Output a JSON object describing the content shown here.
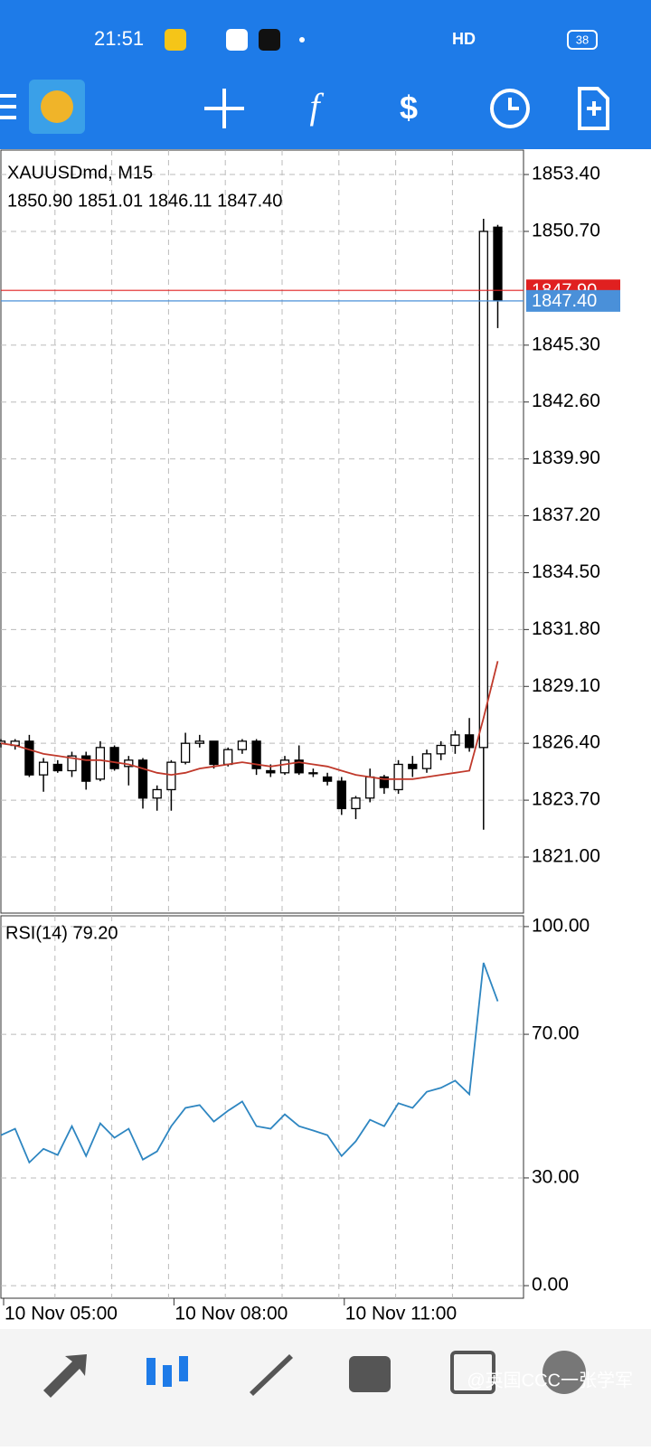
{
  "status_bar": {
    "time": "21:51",
    "network": "HD",
    "battery": "38"
  },
  "watermark": "@英国CCC一张学军",
  "chart_data": [
    {
      "type": "candlestick",
      "title": "XAUUSDmd, M15",
      "subtitle": "1850.90 1851.01 1846.11 1847.40",
      "categories": [
        "10 Nov 05:00",
        null,
        null,
        null,
        null,
        null,
        null,
        null,
        null,
        null,
        null,
        null,
        "10 Nov 08:00",
        null,
        null,
        null,
        null,
        null,
        null,
        null,
        null,
        null,
        null,
        null,
        "10 Nov 11:00",
        null,
        null,
        null,
        null,
        null,
        null,
        null,
        null,
        null,
        null,
        null
      ],
      "open": [
        1826.4,
        1826.3,
        1826.5,
        1824.9,
        1825.4,
        1825.1,
        1825.8,
        1824.7,
        1826.2,
        1825.3,
        1825.6,
        1823.8,
        1824.2,
        1825.5,
        1826.4,
        1826.5,
        1825.4,
        1826.1,
        1826.5,
        1825.1,
        1825.0,
        1825.6,
        1825.0,
        1824.8,
        1824.6,
        1823.3,
        1823.8,
        1824.8,
        1824.2,
        1825.4,
        1825.2,
        1825.9,
        1826.3,
        1826.8,
        1826.2,
        1850.9
      ],
      "high": [
        1826.6,
        1826.6,
        1826.8,
        1825.7,
        1825.6,
        1826.0,
        1826.0,
        1826.5,
        1826.3,
        1825.8,
        1825.7,
        1824.4,
        1825.6,
        1826.9,
        1826.8,
        1826.5,
        1826.2,
        1826.6,
        1826.6,
        1825.4,
        1825.8,
        1826.3,
        1825.2,
        1825.0,
        1824.8,
        1823.9,
        1825.2,
        1824.9,
        1825.6,
        1825.8,
        1826.1,
        1826.5,
        1827.0,
        1827.6,
        1851.3,
        1851.01
      ],
      "low": [
        1826.2,
        1826.1,
        1824.8,
        1824.1,
        1825.0,
        1824.8,
        1824.2,
        1824.6,
        1825.1,
        1824.4,
        1823.3,
        1823.2,
        1823.2,
        1825.4,
        1826.2,
        1825.2,
        1825.3,
        1825.9,
        1824.9,
        1824.8,
        1824.9,
        1824.9,
        1824.8,
        1824.4,
        1823.0,
        1822.8,
        1823.6,
        1824.0,
        1824.0,
        1824.8,
        1825.0,
        1825.6,
        1825.9,
        1826.0,
        1822.3,
        1846.11
      ],
      "close": [
        1826.5,
        1826.5,
        1824.9,
        1825.5,
        1825.1,
        1825.8,
        1824.6,
        1826.2,
        1825.2,
        1825.6,
        1823.8,
        1824.2,
        1825.5,
        1826.4,
        1826.5,
        1825.4,
        1826.1,
        1826.5,
        1825.2,
        1825.0,
        1825.6,
        1825.0,
        1825.0,
        1824.6,
        1823.3,
        1823.8,
        1824.8,
        1824.3,
        1825.4,
        1825.2,
        1825.9,
        1826.3,
        1826.8,
        1826.2,
        1850.7,
        1847.4
      ],
      "up_color": "#ffffff",
      "down_color": "#000000",
      "ma": {
        "color": "#c0392b",
        "values": [
          1826.4,
          1826.3,
          1826.1,
          1825.9,
          1825.8,
          1825.7,
          1825.6,
          1825.6,
          1825.5,
          1825.4,
          1825.2,
          1825.0,
          1824.9,
          1825.0,
          1825.2,
          1825.3,
          1825.4,
          1825.5,
          1825.4,
          1825.3,
          1825.4,
          1825.5,
          1825.4,
          1825.3,
          1825.1,
          1824.9,
          1824.8,
          1824.7,
          1824.7,
          1824.7,
          1824.8,
          1824.9,
          1825.0,
          1825.1,
          1827.6,
          1830.3
        ]
      },
      "price_lines": [
        {
          "value": 1847.9,
          "label": "1847.90",
          "color": "#e02020"
        },
        {
          "value": 1847.4,
          "label": "1847.40",
          "color": "#4a90d9"
        }
      ],
      "ylim": [
        1818.34,
        1854.56
      ],
      "yticks": [
        {
          "value": 1853.4,
          "label": "1853.40"
        },
        {
          "value": 1850.7,
          "label": "1850.70"
        },
        {
          "value": 1845.3,
          "label": "1845.30"
        },
        {
          "value": 1842.6,
          "label": "1842.60"
        },
        {
          "value": 1839.9,
          "label": "1839.90"
        },
        {
          "value": 1837.2,
          "label": "1837.20"
        },
        {
          "value": 1834.5,
          "label": "1834.50"
        },
        {
          "value": 1831.8,
          "label": "1831.80"
        },
        {
          "value": 1829.1,
          "label": "1829.10"
        },
        {
          "value": 1826.4,
          "label": "1826.40"
        },
        {
          "value": 1823.7,
          "label": "1823.70"
        },
        {
          "value": 1821,
          "label": "1821.00"
        }
      ],
      "grid": true
    },
    {
      "type": "line",
      "title": "RSI(14) 79.20",
      "series": [
        {
          "color": "#2e86c1",
          "values": [
            41.9,
            43.7,
            34.3,
            38.1,
            36.4,
            44.4,
            36.1,
            45.2,
            41.2,
            43.7,
            35.1,
            37.4,
            44.4,
            49.5,
            50.3,
            45.7,
            48.7,
            51.3,
            44.4,
            43.7,
            47.7,
            44.4,
            43.2,
            41.9,
            36.1,
            40.2,
            46.2,
            44.4,
            50.8,
            49.5,
            54.0,
            55.1,
            57.1,
            53.3,
            89.9,
            79.2
          ]
        }
      ],
      "ylim": [
        -3.5,
        103
      ],
      "yticks": [
        {
          "value": 100,
          "label": "100.00"
        },
        {
          "value": 70,
          "label": "70.00"
        },
        {
          "value": 30,
          "label": "30.00"
        },
        {
          "value": 0,
          "label": "0.00"
        }
      ],
      "grid": true
    }
  ]
}
